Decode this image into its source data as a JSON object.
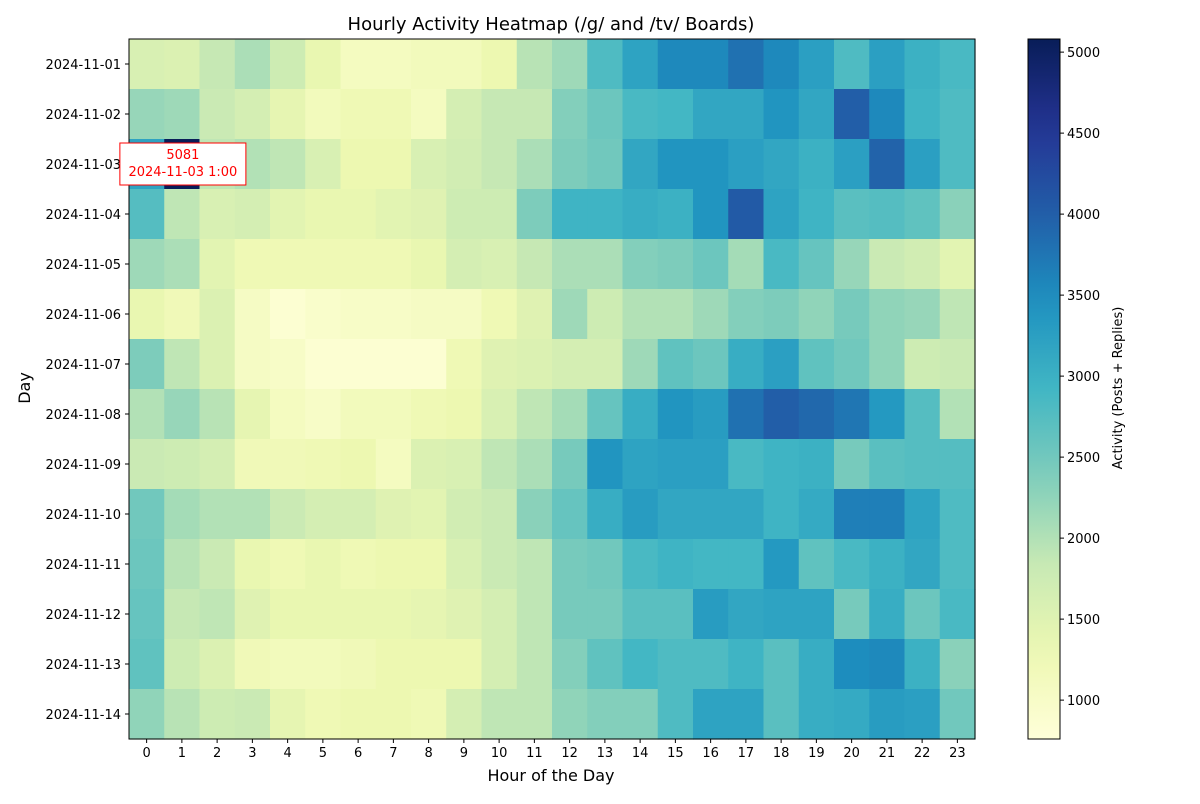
{
  "chart_data": {
    "type": "heatmap",
    "title": "Hourly Activity Heatmap (/g/ and /tv/ Boards)",
    "xlabel": "Hour of the Day",
    "ylabel": "Day",
    "colorbar_label": "Activity (Posts + Replies)",
    "colormap": "YlGnBu",
    "colorbar_range": [
      760,
      5081
    ],
    "colorbar_ticks": [
      "1000",
      "1500",
      "2000",
      "2500",
      "3000",
      "3500",
      "4000",
      "4500",
      "5000"
    ],
    "x_labels": [
      "0",
      "1",
      "2",
      "3",
      "4",
      "5",
      "6",
      "7",
      "8",
      "9",
      "10",
      "11",
      "12",
      "13",
      "14",
      "15",
      "16",
      "17",
      "18",
      "19",
      "20",
      "21",
      "22",
      "23"
    ],
    "y_labels": [
      "2024-11-01",
      "2024-11-02",
      "2024-11-03",
      "2024-11-04",
      "2024-11-05",
      "2024-11-06",
      "2024-11-07",
      "2024-11-08",
      "2024-11-09",
      "2024-11-10",
      "2024-11-11",
      "2024-11-12",
      "2024-11-13",
      "2024-11-14"
    ],
    "values": [
      [
        1600,
        1550,
        1850,
        2050,
        1750,
        1350,
        1100,
        1100,
        1150,
        1150,
        1300,
        1950,
        2150,
        2800,
        3200,
        3550,
        3550,
        3800,
        3550,
        3250,
        2800,
        3250,
        3000,
        2850
      ],
      [
        2200,
        2150,
        1800,
        1650,
        1400,
        1150,
        1250,
        1250,
        1100,
        1650,
        1850,
        1850,
        2350,
        2550,
        2850,
        2900,
        3150,
        3150,
        3400,
        3150,
        4000,
        3550,
        2950,
        2800
      ],
      [
        3200,
        5081,
        1900,
        2000,
        1900,
        1600,
        1300,
        1300,
        1600,
        1700,
        1850,
        2050,
        2400,
        2500,
        3150,
        3400,
        3400,
        3250,
        3150,
        3000,
        3250,
        3950,
        3250,
        2800
      ],
      [
        2750,
        1900,
        1600,
        1650,
        1450,
        1350,
        1350,
        1450,
        1500,
        1750,
        1750,
        2400,
        2950,
        2950,
        3050,
        3000,
        3400,
        4050,
        3200,
        2950,
        2700,
        2750,
        2650,
        2300
      ],
      [
        2150,
        2050,
        1450,
        1250,
        1250,
        1250,
        1250,
        1250,
        1350,
        1650,
        1600,
        1850,
        2050,
        2050,
        2350,
        2400,
        2550,
        2100,
        2850,
        2600,
        2200,
        1800,
        1700,
        1450
      ],
      [
        1350,
        1200,
        1550,
        1050,
        850,
        950,
        1000,
        1000,
        1050,
        1050,
        1250,
        1500,
        2150,
        1750,
        2000,
        2000,
        2150,
        2350,
        2400,
        2250,
        2450,
        2250,
        2200,
        1900
      ],
      [
        2400,
        1900,
        1550,
        1050,
        1000,
        850,
        850,
        850,
        850,
        1250,
        1500,
        1550,
        1650,
        1650,
        2150,
        2650,
        2550,
        3050,
        3250,
        2650,
        2500,
        2250,
        1750,
        1800
      ],
      [
        2000,
        2200,
        1950,
        1400,
        1100,
        1000,
        1150,
        1150,
        1250,
        1300,
        1600,
        1900,
        2100,
        2600,
        3050,
        3400,
        3300,
        3800,
        4000,
        3900,
        3750,
        3350,
        2750,
        2000
      ],
      [
        1800,
        1750,
        1650,
        1200,
        1200,
        1250,
        1300,
        1100,
        1550,
        1600,
        1900,
        2050,
        2450,
        3400,
        3200,
        3250,
        3250,
        2850,
        2950,
        3000,
        2450,
        2700,
        2750,
        2750
      ],
      [
        2500,
        2100,
        2000,
        2000,
        1800,
        1650,
        1650,
        1500,
        1450,
        1700,
        1800,
        2300,
        2600,
        3050,
        3300,
        3150,
        3150,
        3150,
        2950,
        3100,
        3650,
        3650,
        3200,
        2800
      ],
      [
        2550,
        1950,
        1800,
        1350,
        1250,
        1350,
        1250,
        1300,
        1300,
        1600,
        1800,
        1900,
        2450,
        2500,
        2850,
        2950,
        2900,
        2900,
        3350,
        2650,
        2850,
        3000,
        3150,
        2800
      ],
      [
        2600,
        1850,
        1900,
        1500,
        1350,
        1350,
        1350,
        1350,
        1400,
        1500,
        1650,
        1900,
        2450,
        2450,
        2700,
        2700,
        3300,
        3150,
        3200,
        3200,
        2450,
        3050,
        2550,
        2850
      ],
      [
        2650,
        1750,
        1550,
        1200,
        1150,
        1150,
        1200,
        1300,
        1300,
        1300,
        1650,
        1900,
        2350,
        2650,
        2900,
        2800,
        2800,
        2950,
        2700,
        3050,
        3500,
        3550,
        3000,
        2300
      ],
      [
        2250,
        1950,
        1750,
        1800,
        1400,
        1250,
        1300,
        1300,
        1250,
        1650,
        1900,
        1900,
        2250,
        2350,
        2350,
        2800,
        3200,
        3200,
        2700,
        3050,
        3100,
        3300,
        3250,
        2500
      ]
    ],
    "annotation": {
      "value": "5081",
      "label": "2024-11-03 1:00",
      "color": "#ff0000"
    }
  }
}
